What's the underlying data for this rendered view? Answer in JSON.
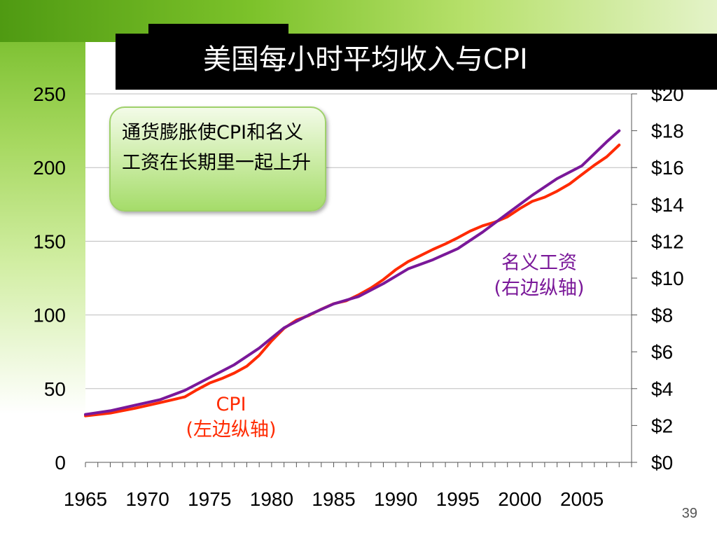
{
  "slide": {
    "title": "美国每小时平均收入与CPI",
    "callout_text": "通货膨胀使CPI和名义工资在长期里一起上升",
    "page_number": "39"
  },
  "colors": {
    "cpi": "#ff2a00",
    "wage": "#7a1899",
    "grid": "#bdbdbd"
  },
  "chart_data": {
    "type": "line",
    "x_tick_labels": [
      "1965",
      "1970",
      "1975",
      "1980",
      "1985",
      "1990",
      "1995",
      "2000",
      "2005"
    ],
    "xlim": [
      1965,
      2009
    ],
    "y_left": {
      "lim": [
        0,
        250
      ],
      "tick_labels": [
        "0",
        "50",
        "100",
        "150",
        "200",
        "250"
      ]
    },
    "y_right": {
      "lim": [
        0,
        20
      ],
      "tick_labels": [
        "$0",
        "$2",
        "$4",
        "$6",
        "$8",
        "$10",
        "$12",
        "$14",
        "$16",
        "$18",
        "$20"
      ]
    },
    "series": [
      {
        "name": "CPI",
        "name_detail": "(左边纵轴)",
        "axis": "left",
        "x": [
          1965,
          1967,
          1969,
          1971,
          1973,
          1974,
          1975,
          1976,
          1977,
          1978,
          1979,
          1980,
          1981,
          1982,
          1983,
          1984,
          1985,
          1986,
          1987,
          1988,
          1989,
          1990,
          1991,
          1992,
          1993,
          1994,
          1995,
          1996,
          1997,
          1998,
          1999,
          2000,
          2001,
          2002,
          2003,
          2004,
          2005,
          2006,
          2007,
          2008
        ],
        "values": [
          31.5,
          33.4,
          36.7,
          40.5,
          44.4,
          49.3,
          53.8,
          56.9,
          60.6,
          65.2,
          72.6,
          82.4,
          90.9,
          96.5,
          99.6,
          103.9,
          107.6,
          109.6,
          113.6,
          118.3,
          124.0,
          130.7,
          136.2,
          140.3,
          144.5,
          148.2,
          152.4,
          156.9,
          160.5,
          163.0,
          166.6,
          172.2,
          177.1,
          179.9,
          184.0,
          188.9,
          195.3,
          201.6,
          207.3,
          215.3
        ]
      },
      {
        "name": "名义工资",
        "name_detail": "(右边纵轴)",
        "axis": "right",
        "x": [
          1965,
          1967,
          1969,
          1971,
          1973,
          1975,
          1977,
          1979,
          1981,
          1983,
          1985,
          1987,
          1989,
          1991,
          1993,
          1995,
          1997,
          1999,
          2001,
          2003,
          2005,
          2007,
          2008
        ],
        "values": [
          2.6,
          2.8,
          3.1,
          3.4,
          3.9,
          4.6,
          5.3,
          6.2,
          7.3,
          8.0,
          8.6,
          9.0,
          9.7,
          10.5,
          11.0,
          11.6,
          12.5,
          13.5,
          14.5,
          15.4,
          16.1,
          17.4,
          18.0
        ]
      }
    ]
  }
}
